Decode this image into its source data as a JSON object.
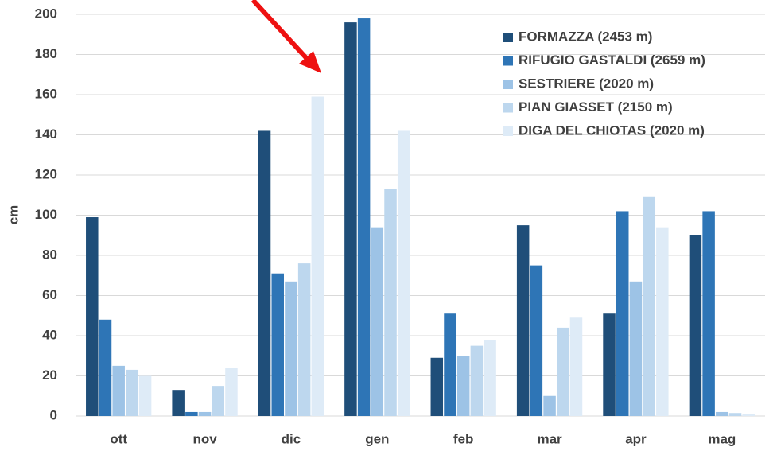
{
  "chart_data": {
    "type": "bar",
    "y_label": "cm",
    "categories": [
      "ott",
      "nov",
      "dic",
      "gen",
      "feb",
      "mar",
      "apr",
      "mag"
    ],
    "series": [
      {
        "name": "FORMAZZA (2453 m)",
        "color": "#1f4e79",
        "values": [
          99,
          13,
          142,
          196,
          29,
          95,
          51,
          90
        ]
      },
      {
        "name": "RIFUGIO GASTALDI (2659 m)",
        "color": "#2e75b6",
        "values": [
          48,
          2,
          71,
          198,
          51,
          75,
          102,
          102
        ]
      },
      {
        "name": "SESTRIERE (2020 m)",
        "color": "#9dc3e6",
        "values": [
          25,
          2,
          67,
          94,
          30,
          10,
          67,
          2
        ]
      },
      {
        "name": "PIAN GIASSET (2150 m)",
        "color": "#bdd7ee",
        "values": [
          23,
          15,
          76,
          113,
          35,
          44,
          109,
          1.5
        ]
      },
      {
        "name": "DIGA DEL CHIOTAS (2020 m)",
        "color": "#deebf7",
        "values": [
          20,
          24,
          159,
          142,
          38,
          49,
          94,
          1
        ]
      }
    ],
    "ylim": [
      0,
      200
    ],
    "yticks": [
      0,
      20,
      40,
      60,
      80,
      100,
      120,
      140,
      160,
      180,
      200
    ],
    "grid": true,
    "legend": "top-right"
  }
}
